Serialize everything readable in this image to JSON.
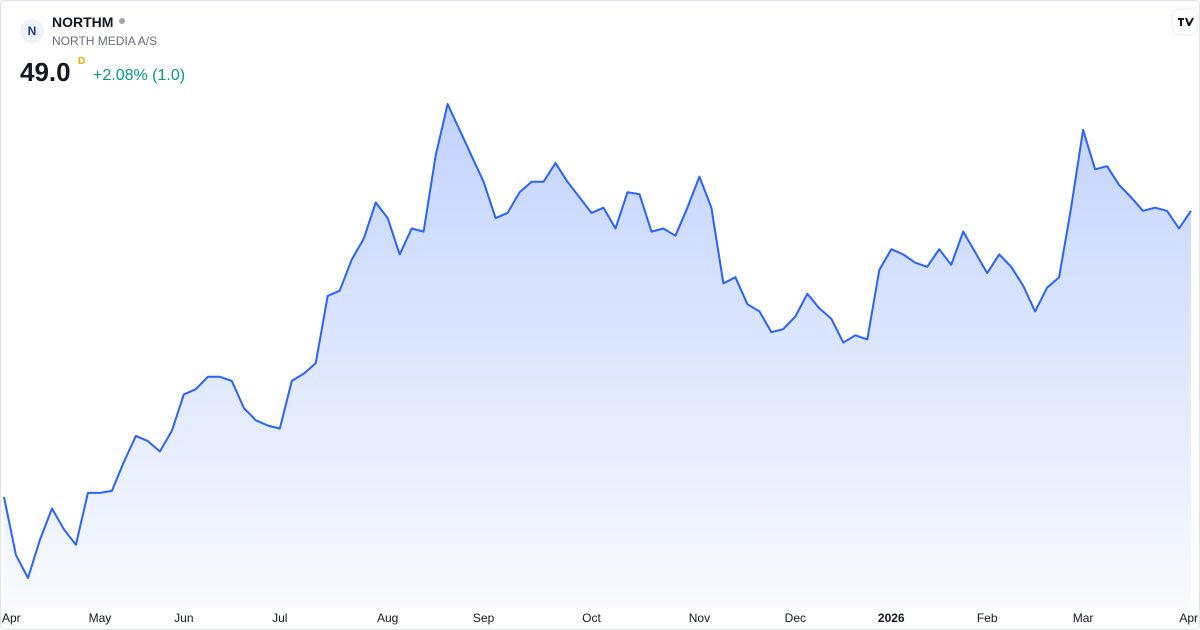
{
  "header": {
    "symbol": "NORTHM",
    "name": "NORTH MEDIA A/S",
    "price": "49.0",
    "currency": "D",
    "change": "+2.08% (1.0)"
  },
  "chart_data": {
    "type": "area",
    "color": "#2962ff",
    "categories": [
      null,
      "Apr",
      null,
      null,
      null,
      null,
      null,
      null,
      "May",
      null,
      null,
      null,
      null,
      null,
      null,
      "Jun",
      null,
      null,
      null,
      null,
      null,
      null,
      null,
      "Jul",
      null,
      null,
      null,
      null,
      null,
      null,
      null,
      null,
      "Aug",
      null,
      null,
      null,
      null,
      null,
      null,
      null,
      "Sep",
      null,
      null,
      null,
      null,
      null,
      null,
      null,
      null,
      "Oct",
      null,
      null,
      null,
      null,
      null,
      null,
      null,
      null,
      "Nov",
      null,
      null,
      null,
      null,
      null,
      null,
      null,
      "Dec",
      null,
      null,
      null,
      null,
      null,
      null,
      null,
      "2026",
      null,
      null,
      null,
      null,
      null,
      null,
      null,
      "Feb",
      null,
      null,
      null,
      null,
      null,
      null,
      null,
      "Mar",
      null,
      null,
      null,
      null,
      null,
      null,
      null,
      null,
      "Apr"
    ],
    "values": [
      35.2,
      32.4,
      31.3,
      33.15,
      34.65,
      33.65,
      32.9,
      35.4,
      35.4,
      35.5,
      36.9,
      38.15,
      37.9,
      37.4,
      38.4,
      40.15,
      40.4,
      41.0,
      41.0,
      40.8,
      39.5,
      38.9,
      38.65,
      38.5,
      40.8,
      41.15,
      41.65,
      44.9,
      45.15,
      46.65,
      47.65,
      49.4,
      48.65,
      46.9,
      48.15,
      48.0,
      51.65,
      54.15,
      52.9,
      51.65,
      50.4,
      48.65,
      48.9,
      49.9,
      50.4,
      50.4,
      51.3,
      50.4,
      49.65,
      48.9,
      49.15,
      48.15,
      49.9,
      49.8,
      48.0,
      48.15,
      47.8,
      49.15,
      50.65,
      49.15,
      45.5,
      45.8,
      44.5,
      44.15,
      43.15,
      43.3,
      43.9,
      45.0,
      44.3,
      43.8,
      42.65,
      43.0,
      42.8,
      46.15,
      47.15,
      46.9,
      46.5,
      46.3,
      47.15,
      46.4,
      48.0,
      47.0,
      46.0,
      46.9,
      46.3,
      45.4,
      44.15,
      45.3,
      45.8,
      49.15,
      52.9,
      51.0,
      51.15,
      50.25,
      49.65,
      49.0,
      49.15,
      49.0,
      48.15,
      49.0
    ]
  }
}
